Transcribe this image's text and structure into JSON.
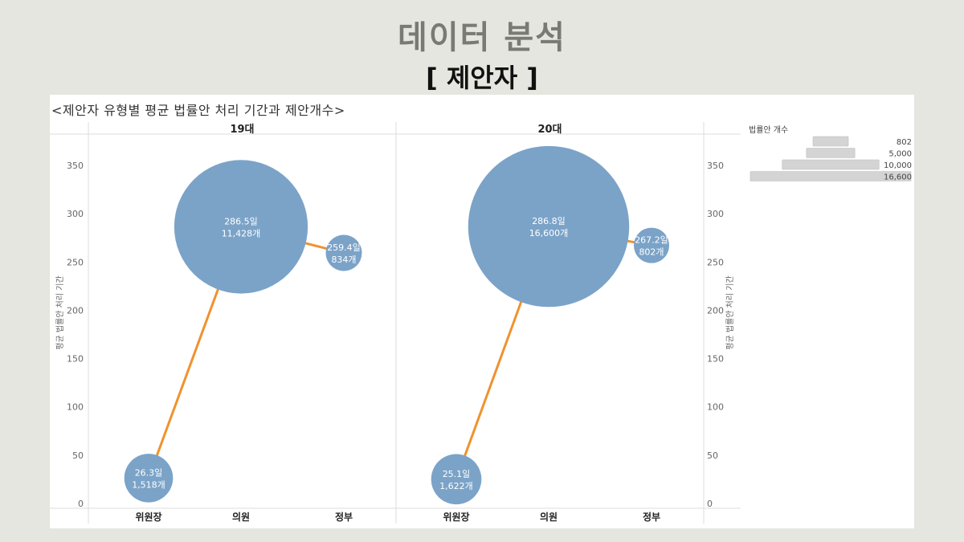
{
  "slide": {
    "title": "데이터 분석",
    "subtitle": "[ 제안자 ]"
  },
  "chart_data": {
    "type": "scatter",
    "title": "<제안자 유형별 평균 법률안 처리 기간과 제안개수>",
    "ylabel": "평균 법률안 처리 기간",
    "ylim": [
      0,
      370
    ],
    "yticks": [
      0,
      50,
      100,
      150,
      200,
      250,
      300,
      350
    ],
    "categories": [
      "위원장",
      "의원",
      "정부"
    ],
    "panels": [
      {
        "name": "19대",
        "points": [
          {
            "category": "위원장",
            "days": 26.3,
            "count": 1518,
            "label_days": "26.3일",
            "label_count": "1,518개"
          },
          {
            "category": "의원",
            "days": 286.5,
            "count": 11428,
            "label_days": "286.5일",
            "label_count": "11,428개"
          },
          {
            "category": "정부",
            "days": 259.4,
            "count": 834,
            "label_days": "259.4일",
            "label_count": "834개"
          }
        ]
      },
      {
        "name": "20대",
        "points": [
          {
            "category": "위원장",
            "days": 25.1,
            "count": 1622,
            "label_days": "25.1일",
            "label_count": "1,622개"
          },
          {
            "category": "의원",
            "days": 286.8,
            "count": 16600,
            "label_days": "286.8일",
            "label_count": "16,600개"
          },
          {
            "category": "정부",
            "days": 267.2,
            "count": 802,
            "label_days": "267.2일",
            "label_count": "802개"
          }
        ]
      }
    ],
    "size_legend": {
      "title": "법률안 개수",
      "items": [
        {
          "value": 802,
          "label": "802"
        },
        {
          "value": 5000,
          "label": "5,000"
        },
        {
          "value": 10000,
          "label": "10,000"
        },
        {
          "value": 16600,
          "label": "16,600"
        }
      ]
    },
    "colors": {
      "bubble": "#7ba3c8",
      "line": "#f0922e",
      "size_bar": "#d4d4d4"
    },
    "grid": false,
    "legend_position": "right"
  }
}
